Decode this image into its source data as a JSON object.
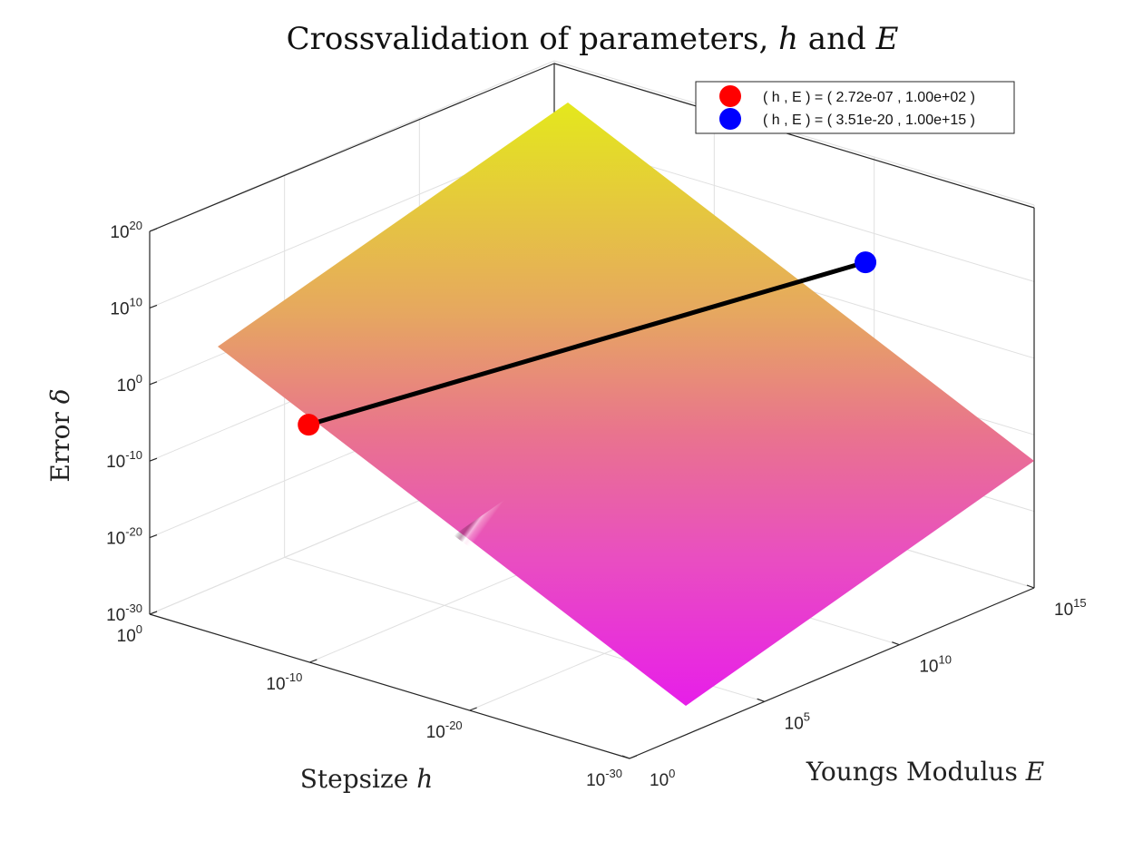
{
  "chart_data": {
    "type": "surface",
    "title": "Crossvalidation of parameters, h and E",
    "title_parts": {
      "main": "Crossvalidation of parameters, ",
      "var1": "h",
      "conj": " and ",
      "var2": "E"
    },
    "xlabel": "Stepsize h",
    "xlabel_parts": {
      "text": "Stepsize ",
      "var": "h"
    },
    "ylabel": "Youngs Modulus E",
    "ylabel_parts": {
      "text": "Youngs Modulus ",
      "var": "E"
    },
    "zlabel": "Error δ",
    "zlabel_parts": {
      "text": "Error ",
      "var": "δ"
    },
    "x_axis": {
      "scale": "log",
      "lim": [
        "1e0",
        "1e-30"
      ],
      "ticks": [
        {
          "base": "10",
          "exp": "0",
          "value_exp": 0
        },
        {
          "base": "10",
          "exp": "-10",
          "value_exp": -10
        },
        {
          "base": "10",
          "exp": "-20",
          "value_exp": -20
        },
        {
          "base": "10",
          "exp": "-30",
          "value_exp": -30
        }
      ]
    },
    "y_axis": {
      "scale": "log",
      "lim": [
        "1e0",
        "1e15"
      ],
      "ticks": [
        {
          "base": "10",
          "exp": "0",
          "value_exp": 0
        },
        {
          "base": "10",
          "exp": "5",
          "value_exp": 5
        },
        {
          "base": "10",
          "exp": "10",
          "value_exp": 10
        },
        {
          "base": "10",
          "exp": "15",
          "value_exp": 15
        }
      ]
    },
    "z_axis": {
      "scale": "log",
      "lim": [
        "1e-30",
        "1e20"
      ],
      "ticks": [
        {
          "base": "10",
          "exp": "-30",
          "value_exp": -30
        },
        {
          "base": "10",
          "exp": "-20",
          "value_exp": -20
        },
        {
          "base": "10",
          "exp": "-10",
          "value_exp": -10
        },
        {
          "base": "10",
          "exp": "0",
          "value_exp": 0
        },
        {
          "base": "10",
          "exp": "10",
          "value_exp": 10
        },
        {
          "base": "10",
          "exp": "20",
          "value_exp": 20
        }
      ]
    },
    "grid": true,
    "surface": {
      "colormap": [
        "#e4e81c",
        "#e6a760",
        "#e9738e",
        "#e94fc0",
        "#e71ee9"
      ],
      "shading": "interp"
    },
    "line": {
      "color": "#000000",
      "from_series": 0,
      "to_series": 1
    },
    "series": [
      {
        "name": "( h , E ) = ( 2.72e-07 , 1.00e+02 )",
        "color": "#ff0000",
        "h": 2.72e-07,
        "E": 100
      },
      {
        "name": "( h , E ) = ( 3.51e-20 , 1.00e+15 )",
        "color": "#0000ff",
        "h": 3.51e-20,
        "E": 1000000000000000.0
      }
    ],
    "legend": {
      "placement": "top-right"
    }
  }
}
